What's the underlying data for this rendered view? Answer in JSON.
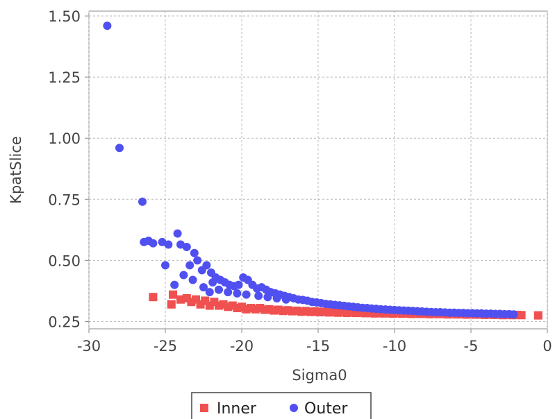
{
  "chart_data": {
    "type": "scatter",
    "xlabel": "Sigma0",
    "ylabel": "KpatSlice",
    "xlim": [
      -30,
      0
    ],
    "ylim": [
      0.22,
      1.52
    ],
    "xticks": [
      "-30",
      "-25",
      "-20",
      "-15",
      "-10",
      "-5",
      "0"
    ],
    "yticks": [
      "0.25",
      "0.50",
      "0.75",
      "1.00",
      "1.25",
      "1.50"
    ],
    "xtick_values": [
      -30,
      -25,
      -20,
      -15,
      -10,
      -5,
      0
    ],
    "ytick_values": [
      0.25,
      0.5,
      0.75,
      1.0,
      1.25,
      1.5
    ],
    "grid": true,
    "legend_position": "bottom-center",
    "series": [
      {
        "name": "Inner",
        "marker": "square",
        "color": "#f05050",
        "points": [
          [
            -25.8,
            0.35
          ],
          [
            -24.5,
            0.36
          ],
          [
            -24.6,
            0.32
          ],
          [
            -24.0,
            0.34
          ],
          [
            -23.6,
            0.345
          ],
          [
            -23.3,
            0.33
          ],
          [
            -23.0,
            0.34
          ],
          [
            -22.7,
            0.32
          ],
          [
            -22.4,
            0.335
          ],
          [
            -22.1,
            0.315
          ],
          [
            -21.8,
            0.33
          ],
          [
            -21.5,
            0.315
          ],
          [
            -21.2,
            0.32
          ],
          [
            -20.9,
            0.31
          ],
          [
            -20.6,
            0.315
          ],
          [
            -20.3,
            0.305
          ],
          [
            -20.0,
            0.31
          ],
          [
            -19.7,
            0.3
          ],
          [
            -19.4,
            0.305
          ],
          [
            -19.1,
            0.3
          ],
          [
            -18.8,
            0.305
          ],
          [
            -18.5,
            0.298
          ],
          [
            -18.2,
            0.3
          ],
          [
            -17.9,
            0.295
          ],
          [
            -17.6,
            0.298
          ],
          [
            -17.3,
            0.293
          ],
          [
            -17.0,
            0.296
          ],
          [
            -16.7,
            0.292
          ],
          [
            -16.4,
            0.294
          ],
          [
            -16.1,
            0.29
          ],
          [
            -15.8,
            0.293
          ],
          [
            -15.5,
            0.289
          ],
          [
            -15.2,
            0.291
          ],
          [
            -14.9,
            0.288
          ],
          [
            -14.6,
            0.29
          ],
          [
            -14.3,
            0.287
          ],
          [
            -14.0,
            0.289
          ],
          [
            -13.7,
            0.286
          ],
          [
            -13.4,
            0.288
          ],
          [
            -13.1,
            0.285
          ],
          [
            -12.8,
            0.287
          ],
          [
            -12.5,
            0.285
          ],
          [
            -12.2,
            0.286
          ],
          [
            -11.9,
            0.284
          ],
          [
            -11.6,
            0.285
          ],
          [
            -11.3,
            0.283
          ],
          [
            -11.0,
            0.285
          ],
          [
            -10.7,
            0.283
          ],
          [
            -10.4,
            0.284
          ],
          [
            -10.1,
            0.282
          ],
          [
            -9.8,
            0.284
          ],
          [
            -9.5,
            0.282
          ],
          [
            -9.2,
            0.283
          ],
          [
            -8.9,
            0.281
          ],
          [
            -8.6,
            0.283
          ],
          [
            -8.3,
            0.281
          ],
          [
            -8.0,
            0.282
          ],
          [
            -7.7,
            0.28
          ],
          [
            -7.4,
            0.282
          ],
          [
            -7.1,
            0.28
          ],
          [
            -6.8,
            0.281
          ],
          [
            -6.5,
            0.279
          ],
          [
            -6.2,
            0.281
          ],
          [
            -5.9,
            0.279
          ],
          [
            -5.6,
            0.28
          ],
          [
            -5.3,
            0.278
          ],
          [
            -5.0,
            0.28
          ],
          [
            -4.7,
            0.278
          ],
          [
            -4.4,
            0.279
          ],
          [
            -4.1,
            0.277
          ],
          [
            -3.8,
            0.279
          ],
          [
            -3.5,
            0.277
          ],
          [
            -3.2,
            0.278
          ],
          [
            -2.9,
            0.276
          ],
          [
            -2.6,
            0.278
          ],
          [
            -2.3,
            0.276
          ],
          [
            -2.0,
            0.277
          ],
          [
            -1.7,
            0.276
          ],
          [
            -0.6,
            0.275
          ]
        ]
      },
      {
        "name": "Outer",
        "marker": "circle",
        "color": "#5050f0",
        "points": [
          [
            -28.8,
            1.46
          ],
          [
            -28.0,
            0.96
          ],
          [
            -26.5,
            0.74
          ],
          [
            -26.4,
            0.575
          ],
          [
            -26.1,
            0.58
          ],
          [
            -25.8,
            0.57
          ],
          [
            -25.2,
            0.575
          ],
          [
            -24.8,
            0.565
          ],
          [
            -24.2,
            0.61
          ],
          [
            -24.0,
            0.565
          ],
          [
            -23.6,
            0.555
          ],
          [
            -23.1,
            0.53
          ],
          [
            -25.0,
            0.48
          ],
          [
            -23.4,
            0.48
          ],
          [
            -23.8,
            0.44
          ],
          [
            -24.4,
            0.4
          ],
          [
            -22.9,
            0.5
          ],
          [
            -22.6,
            0.46
          ],
          [
            -23.2,
            0.42
          ],
          [
            -22.3,
            0.48
          ],
          [
            -22.0,
            0.45
          ],
          [
            -21.7,
            0.43
          ],
          [
            -21.9,
            0.41
          ],
          [
            -21.4,
            0.42
          ],
          [
            -21.1,
            0.41
          ],
          [
            -20.8,
            0.4
          ],
          [
            -20.5,
            0.395
          ],
          [
            -20.2,
            0.4
          ],
          [
            -19.9,
            0.43
          ],
          [
            -19.6,
            0.42
          ],
          [
            -19.3,
            0.4
          ],
          [
            -19.0,
            0.385
          ],
          [
            -18.7,
            0.39
          ],
          [
            -18.4,
            0.38
          ],
          [
            -18.1,
            0.37
          ],
          [
            -17.8,
            0.365
          ],
          [
            -17.5,
            0.36
          ],
          [
            -17.2,
            0.355
          ],
          [
            -16.9,
            0.35
          ],
          [
            -16.6,
            0.345
          ],
          [
            -16.3,
            0.34
          ],
          [
            -16.0,
            0.338
          ],
          [
            -15.7,
            0.335
          ],
          [
            -15.4,
            0.33
          ],
          [
            -15.1,
            0.328
          ],
          [
            -14.8,
            0.325
          ],
          [
            -14.5,
            0.322
          ],
          [
            -14.2,
            0.32
          ],
          [
            -13.9,
            0.318
          ],
          [
            -13.6,
            0.316
          ],
          [
            -13.3,
            0.314
          ],
          [
            -13.0,
            0.312
          ],
          [
            -12.7,
            0.31
          ],
          [
            -12.4,
            0.308
          ],
          [
            -12.1,
            0.306
          ],
          [
            -11.8,
            0.305
          ],
          [
            -11.5,
            0.303
          ],
          [
            -11.2,
            0.302
          ],
          [
            -10.9,
            0.3
          ],
          [
            -10.6,
            0.299
          ],
          [
            -10.3,
            0.298
          ],
          [
            -10.0,
            0.297
          ],
          [
            -9.7,
            0.296
          ],
          [
            -9.4,
            0.295
          ],
          [
            -9.1,
            0.294
          ],
          [
            -8.8,
            0.293
          ],
          [
            -8.5,
            0.292
          ],
          [
            -8.2,
            0.291
          ],
          [
            -7.9,
            0.29
          ],
          [
            -7.6,
            0.289
          ],
          [
            -7.3,
            0.288
          ],
          [
            -7.0,
            0.288
          ],
          [
            -6.7,
            0.287
          ],
          [
            -6.4,
            0.286
          ],
          [
            -6.1,
            0.286
          ],
          [
            -5.8,
            0.285
          ],
          [
            -5.5,
            0.285
          ],
          [
            -5.2,
            0.284
          ],
          [
            -4.9,
            0.284
          ],
          [
            -4.6,
            0.283
          ],
          [
            -4.3,
            0.283
          ],
          [
            -4.0,
            0.282
          ],
          [
            -3.7,
            0.282
          ],
          [
            -3.4,
            0.281
          ],
          [
            -3.1,
            0.281
          ],
          [
            -2.8,
            0.28
          ],
          [
            -2.5,
            0.28
          ],
          [
            -2.2,
            0.279
          ],
          [
            -21.5,
            0.38
          ],
          [
            -20.9,
            0.37
          ],
          [
            -20.3,
            0.365
          ],
          [
            -19.7,
            0.36
          ],
          [
            -22.5,
            0.39
          ],
          [
            -22.1,
            0.37
          ],
          [
            -18.9,
            0.355
          ],
          [
            -18.3,
            0.35
          ],
          [
            -17.7,
            0.345
          ],
          [
            -17.1,
            0.34
          ]
        ]
      }
    ]
  }
}
